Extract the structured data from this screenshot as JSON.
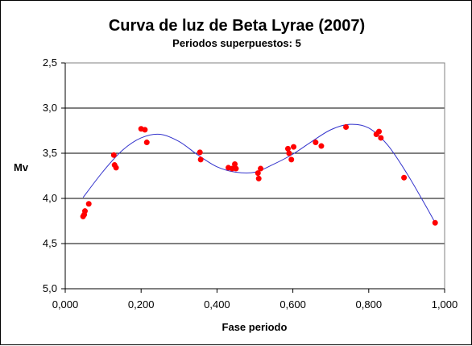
{
  "chart_data": {
    "type": "scatter",
    "title": "Curva de luz de Beta Lyrae (2007)",
    "subtitle": "Periodos superpuestos: 5",
    "xlabel": "Fase periodo",
    "ylabel": "Mv",
    "xlim": [
      0,
      1
    ],
    "ylim": [
      2.5,
      5.0
    ],
    "y_inverted": true,
    "grid": "horizontal",
    "x_ticks": [
      "0,000",
      "0,200",
      "0,400",
      "0,600",
      "0,800",
      "1,000"
    ],
    "y_ticks": [
      "2,5",
      "3,0",
      "3,5",
      "4,0",
      "4,5",
      "5,0"
    ],
    "point_color": "#ff0000",
    "trend_color": "#3333cc",
    "points": [
      {
        "x": 0.047,
        "y": 4.2
      },
      {
        "x": 0.05,
        "y": 4.18
      },
      {
        "x": 0.052,
        "y": 4.14
      },
      {
        "x": 0.062,
        "y": 4.06
      },
      {
        "x": 0.128,
        "y": 3.52
      },
      {
        "x": 0.13,
        "y": 3.63
      },
      {
        "x": 0.134,
        "y": 3.66
      },
      {
        "x": 0.2,
        "y": 3.23
      },
      {
        "x": 0.21,
        "y": 3.24
      },
      {
        "x": 0.215,
        "y": 3.38
      },
      {
        "x": 0.355,
        "y": 3.49
      },
      {
        "x": 0.357,
        "y": 3.57
      },
      {
        "x": 0.43,
        "y": 3.66
      },
      {
        "x": 0.44,
        "y": 3.67
      },
      {
        "x": 0.447,
        "y": 3.62
      },
      {
        "x": 0.45,
        "y": 3.67
      },
      {
        "x": 0.508,
        "y": 3.72
      },
      {
        "x": 0.51,
        "y": 3.78
      },
      {
        "x": 0.515,
        "y": 3.67
      },
      {
        "x": 0.587,
        "y": 3.45
      },
      {
        "x": 0.59,
        "y": 3.5
      },
      {
        "x": 0.596,
        "y": 3.57
      },
      {
        "x": 0.602,
        "y": 3.43
      },
      {
        "x": 0.66,
        "y": 3.38
      },
      {
        "x": 0.675,
        "y": 3.42
      },
      {
        "x": 0.74,
        "y": 3.21
      },
      {
        "x": 0.82,
        "y": 3.29
      },
      {
        "x": 0.827,
        "y": 3.26
      },
      {
        "x": 0.832,
        "y": 3.33
      },
      {
        "x": 0.893,
        "y": 3.77
      },
      {
        "x": 0.975,
        "y": 4.27
      }
    ],
    "trendline": [
      [
        0.047,
        3.99
      ],
      [
        0.1,
        3.7
      ],
      [
        0.15,
        3.47
      ],
      [
        0.2,
        3.33
      ],
      [
        0.25,
        3.29
      ],
      [
        0.3,
        3.37
      ],
      [
        0.35,
        3.52
      ],
      [
        0.4,
        3.65
      ],
      [
        0.45,
        3.71
      ],
      [
        0.5,
        3.71
      ],
      [
        0.55,
        3.62
      ],
      [
        0.6,
        3.51
      ],
      [
        0.65,
        3.37
      ],
      [
        0.7,
        3.24
      ],
      [
        0.75,
        3.18
      ],
      [
        0.8,
        3.22
      ],
      [
        0.85,
        3.41
      ],
      [
        0.9,
        3.72
      ],
      [
        0.95,
        4.08
      ],
      [
        0.975,
        4.27
      ]
    ]
  }
}
